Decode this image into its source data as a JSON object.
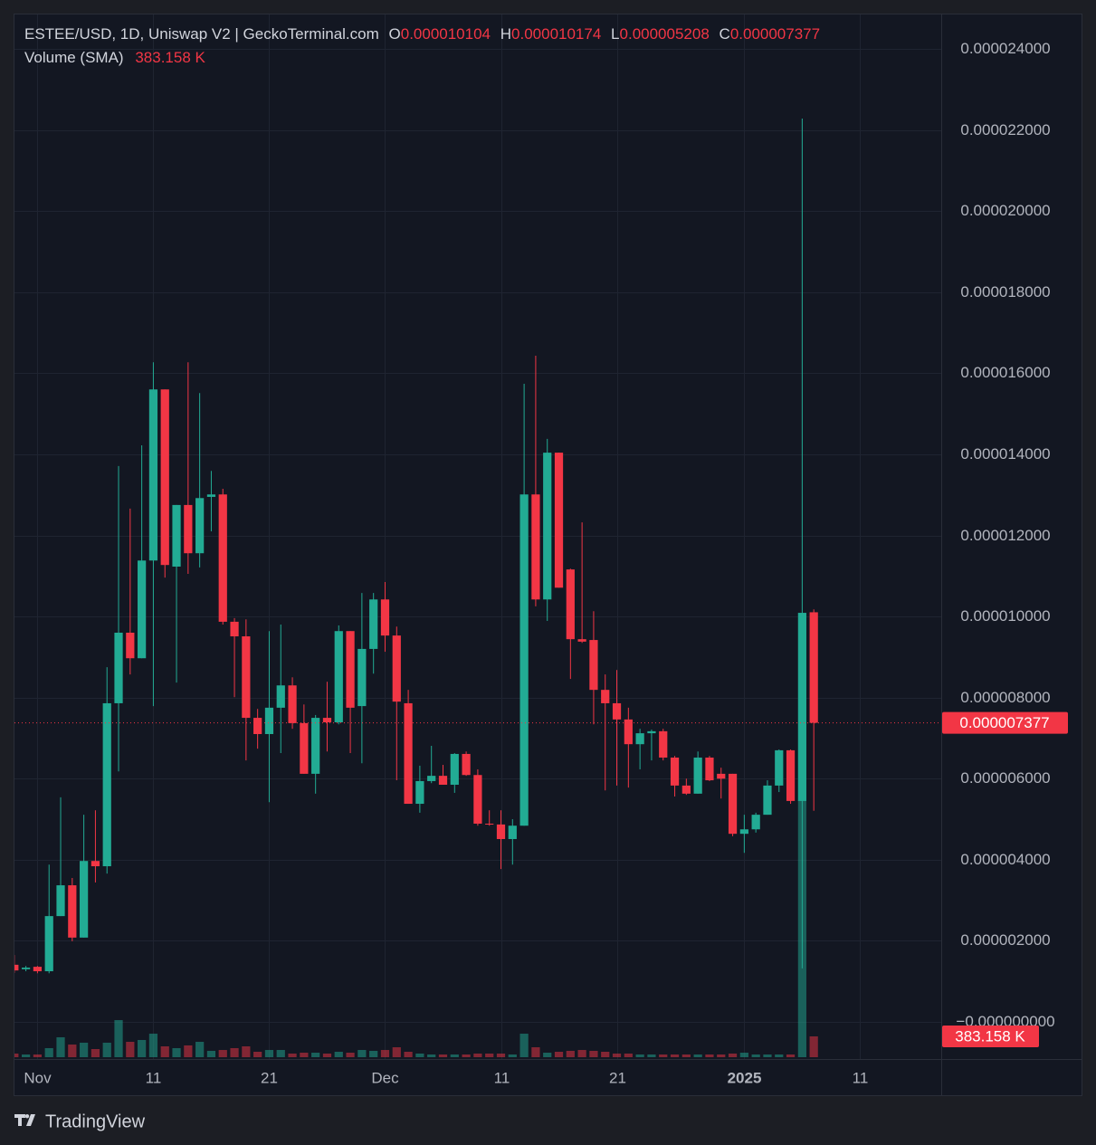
{
  "chart_data": {
    "type": "candlestick",
    "title": "ESTEE/USD, 1D, Uniswap V2 | GeckoTerminal.com",
    "ohlc_letters": [
      "O",
      "H",
      "L",
      "C"
    ],
    "branding": "TradingView",
    "up_color": "#22ab94",
    "down_color": "#f23645",
    "grid": true,
    "x": [
      "2024-10-30",
      "2024-10-31",
      "2024-11-01",
      "2024-11-02",
      "2024-11-03",
      "2024-11-04",
      "2024-11-05",
      "2024-11-06",
      "2024-11-07",
      "2024-11-08",
      "2024-11-09",
      "2024-11-10",
      "2024-11-11",
      "2024-11-12",
      "2024-11-13",
      "2024-11-14",
      "2024-11-15",
      "2024-11-16",
      "2024-11-17",
      "2024-11-18",
      "2024-11-19",
      "2024-11-20",
      "2024-11-21",
      "2024-11-22",
      "2024-11-23",
      "2024-11-24",
      "2024-11-25",
      "2024-11-26",
      "2024-11-27",
      "2024-11-28",
      "2024-11-29",
      "2024-11-30",
      "2024-12-01",
      "2024-12-02",
      "2024-12-03",
      "2024-12-04",
      "2024-12-05",
      "2024-12-06",
      "2024-12-07",
      "2024-12-08",
      "2024-12-09",
      "2024-12-10",
      "2024-12-11",
      "2024-12-12",
      "2024-12-13",
      "2024-12-14",
      "2024-12-15",
      "2024-12-16",
      "2024-12-17",
      "2024-12-18",
      "2024-12-19",
      "2024-12-20",
      "2024-12-21",
      "2024-12-22",
      "2024-12-23",
      "2024-12-24",
      "2024-12-25",
      "2024-12-26",
      "2024-12-27",
      "2024-12-28",
      "2024-12-29",
      "2024-12-30",
      "2024-12-31",
      "2025-01-01",
      "2025-01-02",
      "2025-01-03",
      "2025-01-04",
      "2025-01-05",
      "2025-01-06",
      "2025-01-07"
    ],
    "open": [
      1.41e-06,
      1.3e-06,
      1.36e-06,
      1.25e-06,
      2.61e-06,
      3.37e-06,
      2.08e-06,
      3.97e-06,
      3.84e-06,
      7.86e-06,
      9.6e-06,
      8.97e-06,
      1.138e-05,
      1.56e-05,
      1.123e-05,
      1.275e-05,
      1.156e-05,
      1.295e-05,
      1.301e-05,
      9.87e-06,
      9.51e-06,
      7.5e-06,
      7.1e-06,
      7.75e-06,
      8.3e-06,
      7.37e-06,
      6.12e-06,
      7.5e-06,
      7.39e-06,
      9.64e-06,
      7.79e-06,
      9.2e-06,
      1.042e-05,
      9.53e-06,
      7.86e-06,
      5.38e-06,
      5.94e-06,
      6.07e-06,
      5.85e-06,
      6.61e-06,
      6.09e-06,
      4.89e-06,
      4.87e-06,
      4.51e-06,
      4.84e-06,
      1.301e-05,
      1.042e-05,
      1.404e-05,
      1.116e-05,
      9.44e-06,
      9.42e-06,
      8.19e-06,
      7.86e-06,
      7.46e-06,
      6.85e-06,
      7.12e-06,
      7.17e-06,
      6.52e-06,
      5.83e-06,
      5.63e-06,
      6.52e-06,
      6.12e-06,
      6.12e-06,
      4.64e-06,
      4.75e-06,
      5.11e-06,
      5.83e-06,
      6.7e-06,
      5.45e-06,
      1.0104e-05
    ],
    "high": [
      1.65e-06,
      1.38e-06,
      1.38e-06,
      3.88e-06,
      5.54e-06,
      3.55e-06,
      5.11e-06,
      5.22e-06,
      8.75e-06,
      1.371e-05,
      1.266e-05,
      1.422e-05,
      1.627e-05,
      1.56e-05,
      1.275e-05,
      1.627e-05,
      1.551e-05,
      1.359e-05,
      1.315e-05,
      9.96e-06,
      9.93e-06,
      7.72e-06,
      9.64e-06,
      9.8e-06,
      8.5e-06,
      7.83e-06,
      7.57e-06,
      8.39e-06,
      9.78e-06,
      9.64e-06,
      1.058e-05,
      1.058e-05,
      1.085e-05,
      9.75e-06,
      8.19e-06,
      6.32e-06,
      6.81e-06,
      6.34e-06,
      6.63e-06,
      6.67e-06,
      6.23e-06,
      5.22e-06,
      5.22e-06,
      5e-06,
      1.574e-05,
      1.643e-05,
      1.438e-05,
      1.404e-05,
      1.118e-05,
      1.232e-05,
      1.013e-05,
      8.57e-06,
      8.68e-06,
      7.75e-06,
      7.23e-06,
      7.21e-06,
      7.23e-06,
      6.56e-06,
      6e-06,
      6.67e-06,
      6.56e-06,
      6.27e-06,
      6.12e-06,
      5.11e-06,
      5.16e-06,
      5.96e-06,
      6.72e-06,
      6.72e-06,
      2.228e-05,
      1.0174e-05
    ],
    "low": [
      1.21e-06,
      1.25e-06,
      1.2e-06,
      1.2e-06,
      2.61e-06,
      1.99e-06,
      2.08e-06,
      3.44e-06,
      3.66e-06,
      6.18e-06,
      8.57e-06,
      8.97e-06,
      7.79e-06,
      1.096e-05,
      8.37e-06,
      1.105e-05,
      1.121e-05,
      1.21e-05,
      9.8e-06,
      8.01e-06,
      6.45e-06,
      6.74e-06,
      5.42e-06,
      6.63e-06,
      7.23e-06,
      6.12e-06,
      5.63e-06,
      6.67e-06,
      7.34e-06,
      6.63e-06,
      6.38e-06,
      8.59e-06,
      9.13e-06,
      5.96e-06,
      5.38e-06,
      5.16e-06,
      5.89e-06,
      5.85e-06,
      5.65e-06,
      6.07e-06,
      4.84e-06,
      4.84e-06,
      3.77e-06,
      3.88e-06,
      4.84e-06,
      1.025e-05,
      9.89e-06,
      1.071e-05,
      8.46e-06,
      9.35e-06,
      7.34e-06,
      5.71e-06,
      5.83e-06,
      5.78e-06,
      6.23e-06,
      6.45e-06,
      6.45e-06,
      5.56e-06,
      5.6e-06,
      5.63e-06,
      5.94e-06,
      5.51e-06,
      4.58e-06,
      4.17e-06,
      4.67e-06,
      5.11e-06,
      5.67e-06,
      5.38e-06,
      1.32e-06,
      5.208e-06
    ],
    "close": [
      1.27e-06,
      1.34e-06,
      1.25e-06,
      2.61e-06,
      3.37e-06,
      2.08e-06,
      3.97e-06,
      3.84e-06,
      7.86e-06,
      9.6e-06,
      8.97e-06,
      1.138e-05,
      1.56e-05,
      1.127e-05,
      1.275e-05,
      1.156e-05,
      1.292e-05,
      1.301e-05,
      9.87e-06,
      9.51e-06,
      7.5e-06,
      7.1e-06,
      7.75e-06,
      8.3e-06,
      7.37e-06,
      6.12e-06,
      7.5e-06,
      7.39e-06,
      9.64e-06,
      7.75e-06,
      9.2e-06,
      1.042e-05,
      9.53e-06,
      7.9e-06,
      5.38e-06,
      5.94e-06,
      6.07e-06,
      5.85e-06,
      6.61e-06,
      6.09e-06,
      4.89e-06,
      4.87e-06,
      4.51e-06,
      4.84e-06,
      1.301e-05,
      1.042e-05,
      1.404e-05,
      1.071e-05,
      9.44e-06,
      9.38e-06,
      8.19e-06,
      7.86e-06,
      7.46e-06,
      6.85e-06,
      7.12e-06,
      7.17e-06,
      6.52e-06,
      5.83e-06,
      5.63e-06,
      6.52e-06,
      5.96e-06,
      6e-06,
      4.64e-06,
      4.75e-06,
      5.11e-06,
      5.83e-06,
      6.7e-06,
      5.45e-06,
      1.009e-05,
      7.377e-06
    ],
    "volume": {
      "name": "Volume (SMA)",
      "values": [
        67,
        50,
        50,
        167,
        367,
        233,
        267,
        150,
        267,
        683,
        283,
        317,
        433,
        200,
        167,
        217,
        283,
        117,
        133,
        167,
        200,
        100,
        133,
        133,
        67,
        83,
        83,
        67,
        100,
        83,
        133,
        117,
        133,
        183,
        100,
        67,
        50,
        50,
        50,
        50,
        67,
        67,
        67,
        50,
        433,
        183,
        83,
        100,
        117,
        133,
        117,
        100,
        67,
        67,
        50,
        50,
        50,
        50,
        50,
        50,
        50,
        50,
        67,
        83,
        50,
        50,
        50,
        50,
        4732,
        383.158
      ],
      "value_labels": [
        null,
        null,
        null,
        null,
        null,
        null,
        null,
        null,
        null,
        null,
        null,
        null,
        null,
        null,
        null,
        null,
        null,
        null,
        null,
        null,
        null,
        null,
        null,
        null,
        null,
        null,
        null,
        null,
        null,
        null,
        null,
        null,
        null,
        null,
        null,
        null,
        null,
        null,
        null,
        null,
        null,
        null,
        null,
        null,
        null,
        null,
        null,
        null,
        null,
        null,
        null,
        null,
        null,
        null,
        null,
        null,
        null,
        null,
        null,
        null,
        null,
        null,
        null,
        null,
        null,
        null,
        null,
        null,
        null,
        "383.158 K"
      ]
    },
    "xlim": [
      "2024-10-29",
      "2025-01-18"
    ],
    "xticks": [
      {
        "value": "2024-11-01",
        "label": "Nov"
      },
      {
        "value": "2024-11-11",
        "label": "11"
      },
      {
        "value": "2024-11-21",
        "label": "21"
      },
      {
        "value": "2024-12-01",
        "label": "Dec"
      },
      {
        "value": "2024-12-11",
        "label": "11"
      },
      {
        "value": "2024-12-21",
        "label": "21"
      },
      {
        "value": "2025-01-01",
        "label": "2025"
      },
      {
        "value": "2025-01-11",
        "label": "11"
      }
    ],
    "ylim": [
      -8.7e-07,
      2.487e-05
    ],
    "yticks": [
      {
        "value": 0,
        "label": "−0.000000000"
      },
      {
        "value": 2e-06,
        "label": "0.000002000"
      },
      {
        "value": 4e-06,
        "label": "0.000004000"
      },
      {
        "value": 6e-06,
        "label": "0.000006000"
      },
      {
        "value": 8e-06,
        "label": "0.000008000"
      },
      {
        "value": 1e-05,
        "label": "0.000010000"
      },
      {
        "value": 1.2e-05,
        "label": "0.000012000"
      },
      {
        "value": 1.4e-05,
        "label": "0.000014000"
      },
      {
        "value": 1.6e-05,
        "label": "0.000016000"
      },
      {
        "value": 1.8e-05,
        "label": "0.000018000"
      },
      {
        "value": 2e-05,
        "label": "0.000020000"
      },
      {
        "value": 2.2e-05,
        "label": "0.000022000"
      },
      {
        "value": 2.4e-05,
        "label": "0.000024000"
      }
    ]
  }
}
